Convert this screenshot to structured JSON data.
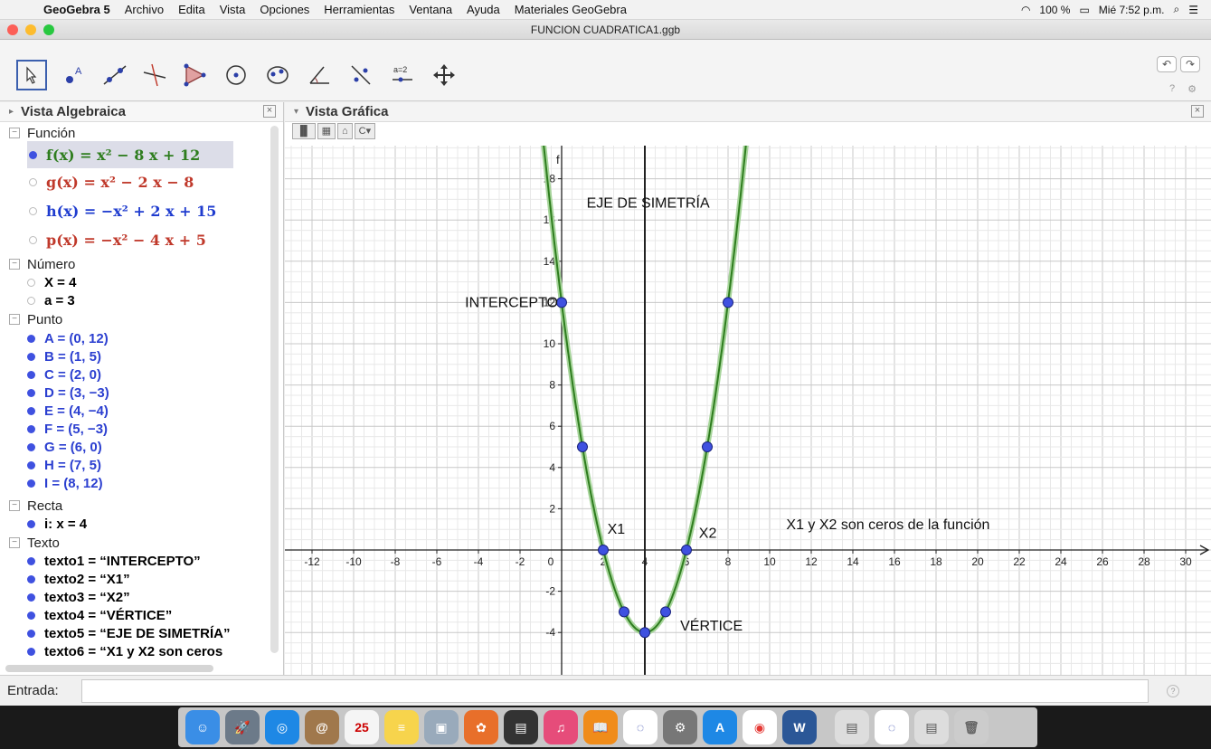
{
  "menubar": {
    "app": "GeoGebra 5",
    "items": [
      "Archivo",
      "Edita",
      "Vista",
      "Opciones",
      "Herramientas",
      "Ventana",
      "Ayuda",
      "Materiales GeoGebra"
    ],
    "battery": "100 %",
    "clock": "Mié 7:52 p.m."
  },
  "window": {
    "title": "FUNCION CUADRATICA1.ggb"
  },
  "algebra": {
    "header": "Vista Algebraica",
    "categories": {
      "funcion": "Función",
      "numero": "Número",
      "punto": "Punto",
      "recta": "Recta",
      "texto": "Texto"
    },
    "functions": [
      {
        "name": "f(x)",
        "expr": "x² − 8 x + 12",
        "color": "#2e7d1e"
      },
      {
        "name": "g(x)",
        "expr": "x² − 2 x − 8",
        "color": "#c0392b"
      },
      {
        "name": "h(x)",
        "expr": "−x² + 2 x + 15",
        "color": "#1f3ccf"
      },
      {
        "name": "p(x)",
        "expr": "−x² − 4 x + 5",
        "color": "#c0392b"
      }
    ],
    "numbers": [
      "X = 4",
      "a = 3"
    ],
    "points": [
      "A = (0, 12)",
      "B = (1, 5)",
      "C = (2, 0)",
      "D = (3, −3)",
      "E = (4, −4)",
      "F = (5, −3)",
      "G = (6, 0)",
      "H = (7, 5)",
      "I = (8, 12)"
    ],
    "line": "i: x = 4",
    "texts": [
      "texto1 = “INTERCEPTO”",
      "texto2 = “X1”",
      "texto3 = “X2”",
      "texto4 = “VÉRTICE”",
      "texto5 = “EJE DE SIMETRÍA”",
      "texto6 = “X1 y X2 son ceros"
    ]
  },
  "graphics": {
    "header": "Vista Gráfica",
    "curve_label": "f",
    "labels": {
      "intercepto": "INTERCEPTO",
      "eje": "EJE DE SIMETRÍA",
      "x1": "X1",
      "x2": "X2",
      "vertice": "VÉRTICE",
      "ceros": "X1 y X2 son ceros de la función"
    }
  },
  "chart_data": {
    "type": "line",
    "function": "f(x) = x² − 8x + 12",
    "xlim": [
      -14,
      30.5
    ],
    "ylim": [
      -5.5,
      19.5
    ],
    "x_ticks": [
      -12,
      -10,
      -8,
      -6,
      -4,
      -2,
      0,
      2,
      4,
      6,
      8,
      10,
      12,
      14,
      16,
      18,
      20,
      22,
      24,
      26,
      28,
      30
    ],
    "y_ticks": [
      -4,
      -2,
      2,
      4,
      6,
      8,
      10,
      12,
      14,
      16,
      18
    ],
    "points": [
      {
        "x": 0,
        "y": 12
      },
      {
        "x": 1,
        "y": 5
      },
      {
        "x": 2,
        "y": 0
      },
      {
        "x": 3,
        "y": -3
      },
      {
        "x": 4,
        "y": -4
      },
      {
        "x": 5,
        "y": -3
      },
      {
        "x": 6,
        "y": 0
      },
      {
        "x": 7,
        "y": 5
      },
      {
        "x": 8,
        "y": 12
      }
    ],
    "axis_of_symmetry": 4,
    "grid": true
  },
  "entrada": {
    "label": "Entrada:"
  },
  "colors": {
    "curve": "#2e7d1e",
    "point": "#3f51e0",
    "accent": "#3b5fae"
  }
}
